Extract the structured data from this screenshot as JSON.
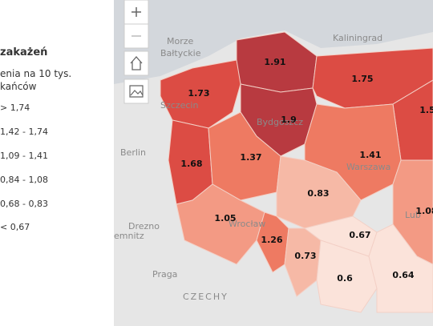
{
  "panel": {
    "title": "zakażeń",
    "subtitle_lines": [
      "enia na 10 tys.",
      "kańców"
    ],
    "legend": [
      "> 1,74",
      "1,42 - 1,74",
      "1,09 - 1,41",
      "0,84 - 1,08",
      "0,68 - 0,83",
      "< 0,67"
    ]
  },
  "map": {
    "places": [
      "Morze",
      "Bałtyckie",
      "Kaliningrad",
      "Szczecin",
      "Berlin",
      "Bydgoszcz",
      "Warszawa",
      "Drezno",
      "Praga",
      "CZECHY",
      "emnitz",
      "Wrocław",
      "Lub"
    ],
    "regions": [
      "1.91",
      "1.73",
      "1.75",
      "1.5",
      "1.9",
      "1.68",
      "1.37",
      "1.41",
      "0.83",
      "1.08",
      "1.05",
      "1.26",
      "0.73",
      "0.67",
      "0.6",
      "0.64"
    ]
  }
}
